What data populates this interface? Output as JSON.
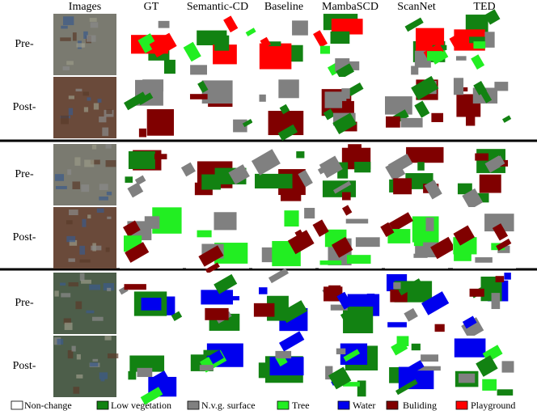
{
  "columns": [
    "Images",
    "GT",
    "Semantic-CD",
    "Baseline",
    "MambaSCD",
    "ScanNet",
    "TED"
  ],
  "groups": [
    {
      "rows": [
        "Pre-",
        "Post-"
      ]
    },
    {
      "rows": [
        "Pre-",
        "Post-"
      ]
    },
    {
      "rows": [
        "Pre-",
        "Post-"
      ]
    }
  ],
  "legend": [
    {
      "label": "Non-change",
      "color": "#ffffff"
    },
    {
      "label": "Low vegetation",
      "color": "#128212"
    },
    {
      "label": "N.v.g. surface",
      "color": "#808080"
    },
    {
      "label": "Tree",
      "color": "#22ee22"
    },
    {
      "label": "Water",
      "color": "#0000ee"
    },
    {
      "label": "Buliding",
      "color": "#800000"
    },
    {
      "label": "Playground",
      "color": "#ff0000"
    }
  ]
}
